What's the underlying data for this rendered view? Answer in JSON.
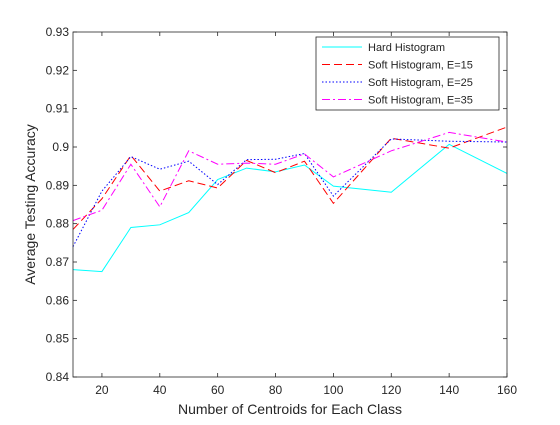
{
  "chart_data": {
    "type": "line",
    "xlabel": "Number of Centroids for Each Class",
    "ylabel": "Average Testing Accuracy",
    "xlim": [
      10,
      160
    ],
    "ylim": [
      0.84,
      0.93
    ],
    "xticks": [
      20,
      40,
      60,
      80,
      100,
      120,
      140,
      160
    ],
    "yticks": [
      0.84,
      0.85,
      0.86,
      0.87,
      0.88,
      0.89,
      0.9,
      0.91,
      0.92,
      0.93
    ],
    "xtick_labels": [
      "20",
      "40",
      "60",
      "80",
      "100",
      "120",
      "140",
      "160"
    ],
    "ytick_labels": [
      "0.84",
      "0.85",
      "0.86",
      "0.87",
      "0.88",
      "0.89",
      "0.9",
      "0.91",
      "0.92",
      "0.93"
    ],
    "grid": false,
    "legend_position": "top-right",
    "x": [
      10,
      20,
      30,
      40,
      50,
      60,
      70,
      80,
      90,
      100,
      120,
      140,
      160
    ],
    "series": [
      {
        "name": "Hard Histogram",
        "color": "#00ffff",
        "dash": "solid",
        "values": [
          0.868,
          0.8675,
          0.879,
          0.8797,
          0.8829,
          0.8915,
          0.8945,
          0.8935,
          0.8953,
          0.8898,
          0.8882,
          0.9007,
          0.8931
        ]
      },
      {
        "name": "Soft Histogram, E=15",
        "color": "#ff0000",
        "dash": "dashed",
        "values": [
          0.8785,
          0.8865,
          0.8978,
          0.8885,
          0.8912,
          0.8893,
          0.8965,
          0.8933,
          0.8963,
          0.8853,
          0.9023,
          0.8997,
          0.9052
        ]
      },
      {
        "name": "Soft Histogram, E=25",
        "color": "#0000ff",
        "dash": "dotted",
        "values": [
          0.874,
          0.8885,
          0.8975,
          0.8942,
          0.8963,
          0.8902,
          0.8967,
          0.8968,
          0.8983,
          0.8872,
          0.9021,
          0.9015,
          0.9013
        ]
      },
      {
        "name": "Soft Histogram, E=35",
        "color": "#ff00ff",
        "dash": "dashdot",
        "values": [
          0.8808,
          0.8835,
          0.8955,
          0.8844,
          0.899,
          0.8955,
          0.8958,
          0.8955,
          0.8982,
          0.8922,
          0.899,
          0.9038,
          0.9013
        ]
      }
    ]
  }
}
